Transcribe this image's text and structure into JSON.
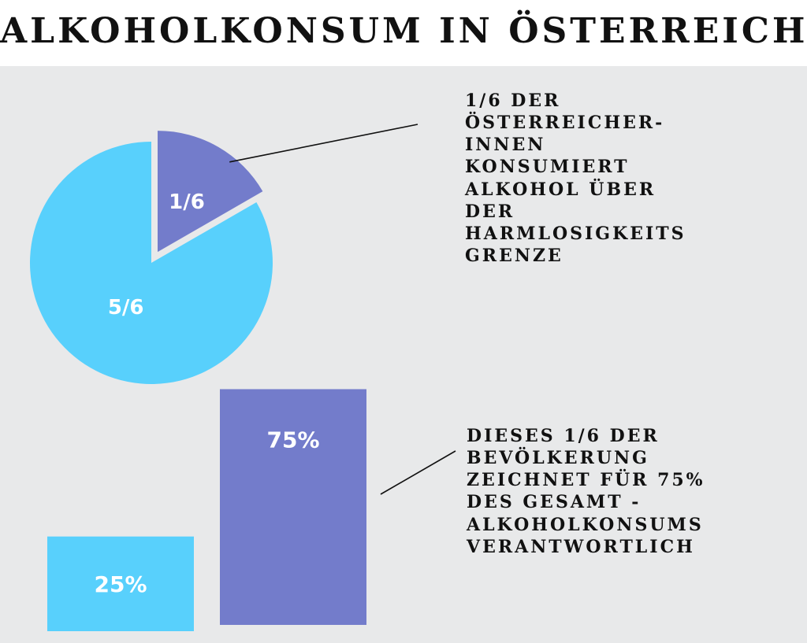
{
  "title": "ALKOHOLKONSUM IN ÖSTERREICH",
  "colors": {
    "background_panel": "#e8e9ea",
    "cyan": "#58d0fc",
    "purple": "#737ccb",
    "text": "#111111",
    "label": "#ffffff"
  },
  "pie_annotation": [
    "1/6 DER",
    "ÖSTERREICHER-",
    "INNEN",
    "KONSUMIERT",
    "ALKOHOL ÜBER",
    "DER",
    "HARMLOSIGKEITS",
    "GRENZE"
  ],
  "bar_annotation": [
    "DIESES 1/6 DER",
    "BEVÖLKERUNG",
    "ZEICHNET FÜR 75%",
    "DES GESAMT -",
    "ALKOHOLKONSUMS",
    "VERANTWORTLICH"
  ],
  "chart_data": [
    {
      "type": "pie",
      "slices": [
        {
          "label": "1/6",
          "value": 1,
          "color": "#737ccb",
          "exploded": true
        },
        {
          "label": "5/6",
          "value": 5,
          "color": "#58d0fc",
          "exploded": false
        }
      ]
    },
    {
      "type": "bar",
      "categories": [
        "",
        ""
      ],
      "values": [
        25,
        75
      ],
      "labels": [
        "25%",
        "75%"
      ],
      "colors": [
        "#58d0fc",
        "#737ccb"
      ],
      "unit": "%"
    }
  ]
}
